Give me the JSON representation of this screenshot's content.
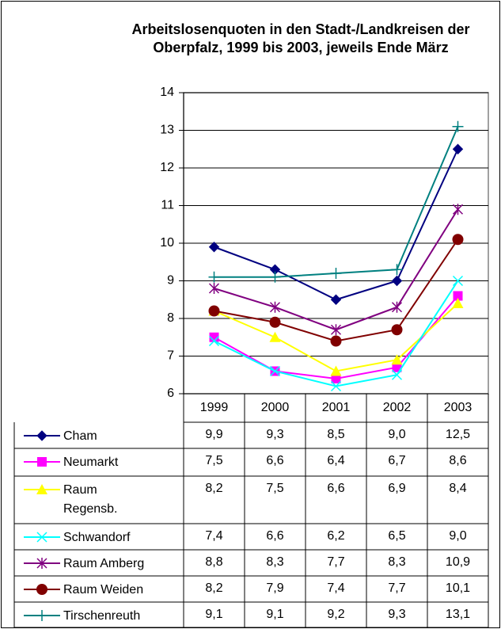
{
  "chart_data": {
    "type": "line",
    "title": "Arbeitslosenquoten in den Stadt-/Landkreisen der Oberpfalz, 1999 bis 2003, jeweils Ende März",
    "categories": [
      "1999",
      "2000",
      "2001",
      "2002",
      "2003"
    ],
    "ylim": [
      6,
      14
    ],
    "yticks": [
      6,
      7,
      8,
      9,
      10,
      11,
      12,
      13,
      14
    ],
    "grid": true,
    "series": [
      {
        "name": "Cham",
        "color": "#000080",
        "marker": "diamond",
        "values": [
          9.9,
          9.3,
          8.5,
          9.0,
          12.5
        ],
        "value_labels": [
          "9,9",
          "9,3",
          "8,5",
          "9,0",
          "12,5"
        ]
      },
      {
        "name": "Neumarkt",
        "color": "#ff00ff",
        "marker": "square",
        "values": [
          7.5,
          6.6,
          6.4,
          6.7,
          8.6
        ],
        "value_labels": [
          "7,5",
          "6,6",
          "6,4",
          "6,7",
          "8,6"
        ]
      },
      {
        "name": "Raum Regensb.",
        "color": "#ffff00",
        "marker": "triangle",
        "values": [
          8.2,
          7.5,
          6.6,
          6.9,
          8.4
        ],
        "value_labels": [
          "8,2",
          "7,5",
          "6,6",
          "6,9",
          "8,4"
        ]
      },
      {
        "name": "Schwandorf",
        "color": "#00ffff",
        "marker": "x",
        "values": [
          7.4,
          6.6,
          6.2,
          6.5,
          9.0
        ],
        "value_labels": [
          "7,4",
          "6,6",
          "6,2",
          "6,5",
          "9,0"
        ]
      },
      {
        "name": "Raum Amberg",
        "color": "#800080",
        "marker": "star",
        "values": [
          8.8,
          8.3,
          7.7,
          8.3,
          10.9
        ],
        "value_labels": [
          "8,8",
          "8,3",
          "7,7",
          "8,3",
          "10,9"
        ]
      },
      {
        "name": "Raum Weiden",
        "color": "#800000",
        "marker": "circle",
        "values": [
          8.2,
          7.9,
          7.4,
          7.7,
          10.1
        ],
        "value_labels": [
          "8,2",
          "7,9",
          "7,4",
          "7,7",
          "10,1"
        ]
      },
      {
        "name": "Tirschenreuth",
        "color": "#008080",
        "marker": "plus",
        "values": [
          9.1,
          9.1,
          9.2,
          9.3,
          13.1
        ],
        "value_labels": [
          "9,1",
          "9,1",
          "9,2",
          "9,3",
          "13,1"
        ]
      }
    ]
  }
}
